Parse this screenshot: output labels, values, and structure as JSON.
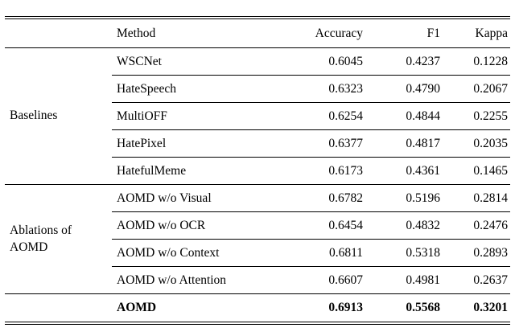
{
  "page": {
    "background": "#ffffff",
    "text_color": "#000000"
  },
  "table": {
    "column_headers": [
      "Method",
      "Accuracy",
      "F1",
      "Kappa"
    ],
    "groups": [
      {
        "label": "Baselines",
        "rows": [
          {
            "method": "WSCNet",
            "accuracy": "0.6045",
            "f1": "0.4237",
            "kappa": "0.1228"
          },
          {
            "method": "HateSpeech",
            "accuracy": "0.6323",
            "f1": "0.4790",
            "kappa": "0.2067"
          },
          {
            "method": "MultiOFF",
            "accuracy": "0.6254",
            "f1": "0.4844",
            "kappa": "0.2255"
          },
          {
            "method": "HatePixel",
            "accuracy": "0.6377",
            "f1": "0.4817",
            "kappa": "0.2035"
          },
          {
            "method": "HatefulMeme",
            "accuracy": "0.6173",
            "f1": "0.4361",
            "kappa": "0.1465"
          }
        ]
      },
      {
        "label": "Ablations of AOMD",
        "rows": [
          {
            "method": "AOMD w/o Visual",
            "accuracy": "0.6782",
            "f1": "0.5196",
            "kappa": "0.2814"
          },
          {
            "method": "AOMD w/o OCR",
            "accuracy": "0.6454",
            "f1": "0.4832",
            "kappa": "0.2476"
          },
          {
            "method": "AOMD w/o Context",
            "accuracy": "0.6811",
            "f1": "0.5318",
            "kappa": "0.2893"
          },
          {
            "method": "AOMD w/o Attention",
            "accuracy": "0.6607",
            "f1": "0.4981",
            "kappa": "0.2637"
          }
        ]
      },
      {
        "label": "",
        "rows": [
          {
            "method": "AOMD",
            "accuracy": "0.6913",
            "f1": "0.5568",
            "kappa": "0.3201",
            "bold": true
          }
        ]
      }
    ]
  }
}
